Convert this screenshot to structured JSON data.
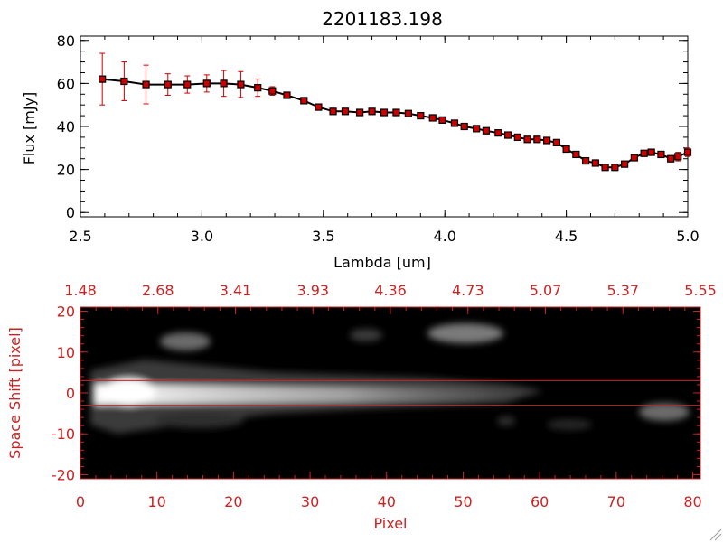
{
  "colors": {
    "plot_line": "#000000",
    "marker": "#cc0000",
    "error_bar": "#cc0000",
    "image_axis": "#cc2222",
    "band_line": "#cc2222"
  },
  "chart_data": [
    {
      "type": "line",
      "title": "2201183.198",
      "xlabel": "Lambda [um]",
      "ylabel": "Flux [mJy]",
      "xlim": [
        2.5,
        5.0
      ],
      "ylim": [
        -2,
        82
      ],
      "xticks": [
        "2.5",
        "3.0",
        "3.5",
        "4.0",
        "4.5",
        "5.0"
      ],
      "yticks": [
        "0",
        "20",
        "40",
        "60",
        "80"
      ],
      "series": [
        {
          "x": [
            2.59,
            2.68,
            2.77,
            2.86,
            2.94,
            3.02,
            3.09,
            3.16,
            3.23,
            3.29,
            3.35,
            3.42,
            3.48,
            3.54,
            3.59,
            3.65,
            3.7,
            3.75,
            3.8,
            3.85,
            3.9,
            3.95,
            3.99,
            4.04,
            4.08,
            4.13,
            4.17,
            4.22,
            4.26,
            4.3,
            4.34,
            4.38,
            4.42,
            4.46,
            4.5,
            4.54,
            4.58,
            4.62,
            4.66,
            4.7,
            4.74,
            4.78,
            4.82,
            4.85,
            4.89,
            4.93,
            4.96,
            5.0
          ],
          "y": [
            62,
            61,
            59.5,
            59.5,
            59.5,
            60,
            60,
            59.5,
            58,
            56.5,
            54.5,
            52,
            49,
            47,
            47,
            46.5,
            47,
            46.5,
            46.5,
            46,
            45,
            44,
            43,
            41.5,
            40,
            39,
            38,
            37,
            36,
            35,
            34,
            34,
            33.5,
            32.5,
            29.5,
            27,
            24,
            23,
            21,
            21,
            22.5,
            25.5,
            27.5,
            28,
            27,
            25,
            26,
            28
          ],
          "err": [
            12,
            9,
            9,
            5,
            4,
            4,
            6,
            6,
            4,
            2,
            1,
            1,
            1,
            1,
            1,
            1,
            1,
            1,
            1,
            1,
            1,
            1,
            1,
            1,
            1,
            1,
            1,
            1,
            1,
            1,
            1,
            1,
            1,
            1,
            1,
            1,
            1,
            1,
            1,
            1,
            1,
            1,
            1,
            1,
            1,
            1,
            2,
            2
          ]
        }
      ]
    },
    {
      "type": "heatmap",
      "xlabel": "Pixel",
      "ylabel": "Space Shift [pixel]",
      "top_axis_labels": [
        "1.48",
        "2.68",
        "3.41",
        "3.93",
        "4.36",
        "4.73",
        "5.07",
        "5.37",
        "5.55"
      ],
      "xlim": [
        0,
        81
      ],
      "ylim": [
        -21,
        21
      ],
      "xticks": [
        "0",
        "10",
        "20",
        "30",
        "40",
        "50",
        "60",
        "70",
        "80"
      ],
      "yticks": [
        "-20",
        "-10",
        "0",
        "10",
        "20"
      ],
      "band_lines": [
        3,
        -3
      ]
    }
  ]
}
